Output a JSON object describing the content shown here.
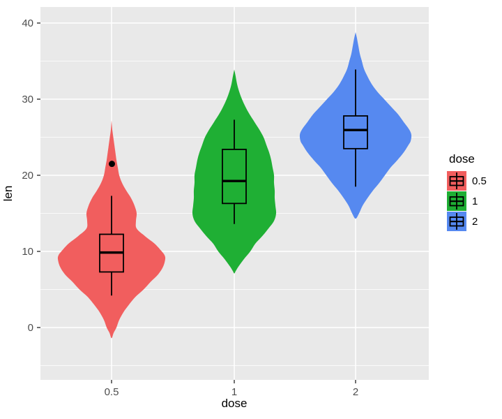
{
  "figure": {
    "background": "#FFFFFF",
    "panel_background": "#E9E9E9",
    "grid_color": "#FFFFFF"
  },
  "axes": {
    "x": {
      "title": "dose",
      "tick_labels": [
        "0.5",
        "1",
        "2"
      ]
    },
    "y": {
      "title": "len",
      "tick_labels": [
        "0",
        "10",
        "20",
        "30",
        "40"
      ],
      "tick_values": [
        0,
        10,
        20,
        30,
        40
      ],
      "minor_values": [
        -5,
        5,
        15,
        25,
        35
      ]
    }
  },
  "legend": {
    "title": "dose",
    "items": [
      {
        "label": "0.5",
        "color": "#F15E5E"
      },
      {
        "label": "1",
        "color": "#1FAF34"
      },
      {
        "label": "2",
        "color": "#5689F0"
      }
    ]
  },
  "chart_data": {
    "type": "violin",
    "title": "",
    "xlabel": "dose",
    "ylabel": "len",
    "categories": [
      "0.5",
      "1",
      "2"
    ],
    "ylim": [
      -7,
      42
    ],
    "grid": "on",
    "legend_position": "right",
    "series": [
      {
        "name": "0.5",
        "fill": "#F15E5E",
        "boxplot": {
          "whisker_low": 4.2,
          "q1": 7.3,
          "median": 9.85,
          "q3": 12.25,
          "whisker_high": 17.3,
          "outliers": [
            21.5
          ]
        },
        "violin": {
          "min": -1.4,
          "max": 27.2,
          "profile": [
            [
              27.2,
              0
            ],
            [
              26,
              1
            ],
            [
              25,
              2.5
            ],
            [
              24,
              4
            ],
            [
              23,
              5.5
            ],
            [
              22,
              7
            ],
            [
              21.5,
              8
            ],
            [
              21,
              9
            ],
            [
              20,
              11
            ],
            [
              19,
              15
            ],
            [
              18,
              21
            ],
            [
              17,
              28
            ],
            [
              16,
              33
            ],
            [
              15,
              36
            ],
            [
              14,
              35
            ],
            [
              13,
              36
            ],
            [
              12,
              48
            ],
            [
              11,
              62
            ],
            [
              10,
              72
            ],
            [
              9.5,
              76
            ],
            [
              9,
              77
            ],
            [
              8,
              74
            ],
            [
              7,
              67
            ],
            [
              6,
              56
            ],
            [
              5,
              46
            ],
            [
              4,
              34
            ],
            [
              3,
              25
            ],
            [
              2,
              17
            ],
            [
              1,
              11
            ],
            [
              0,
              7
            ],
            [
              -0.7,
              3
            ],
            [
              -1.4,
              0
            ]
          ]
        }
      },
      {
        "name": "1",
        "fill": "#1FAF34",
        "boxplot": {
          "whisker_low": 13.6,
          "q1": 16.3,
          "median": 19.25,
          "q3": 23.4,
          "whisker_high": 27.3,
          "outliers": []
        },
        "violin": {
          "min": 7.1,
          "max": 33.9,
          "profile": [
            [
              33.9,
              0
            ],
            [
              33,
              2
            ],
            [
              32,
              4
            ],
            [
              31,
              7
            ],
            [
              30,
              11
            ],
            [
              29,
              16
            ],
            [
              28,
              22
            ],
            [
              27,
              29
            ],
            [
              26,
              36
            ],
            [
              25,
              42
            ],
            [
              24,
              46
            ],
            [
              23,
              50
            ],
            [
              22,
              53
            ],
            [
              21,
              55
            ],
            [
              20,
              57
            ],
            [
              19,
              57
            ],
            [
              18,
              58
            ],
            [
              17,
              58
            ],
            [
              16,
              59
            ],
            [
              15,
              60
            ],
            [
              14,
              57
            ],
            [
              13,
              49
            ],
            [
              12,
              40
            ],
            [
              11,
              30
            ],
            [
              10,
              23
            ],
            [
              9,
              14
            ],
            [
              8,
              6
            ],
            [
              7.4,
              2
            ],
            [
              7.1,
              0
            ]
          ]
        }
      },
      {
        "name": "2",
        "fill": "#5689F0",
        "boxplot": {
          "whisker_low": 18.5,
          "q1": 23.5,
          "median": 25.95,
          "q3": 27.8,
          "whisker_high": 33.9,
          "outliers": []
        },
        "violin": {
          "min": 14.3,
          "max": 38.8,
          "profile": [
            [
              38.8,
              0
            ],
            [
              38,
              2
            ],
            [
              37,
              4
            ],
            [
              36,
              6
            ],
            [
              35,
              9
            ],
            [
              34,
              12
            ],
            [
              33,
              17
            ],
            [
              32,
              23
            ],
            [
              31,
              31
            ],
            [
              30,
              41
            ],
            [
              29,
              51
            ],
            [
              28,
              61
            ],
            [
              27,
              69
            ],
            [
              26,
              77
            ],
            [
              25.3,
              80
            ],
            [
              24.5,
              79
            ],
            [
              24,
              76
            ],
            [
              23,
              69
            ],
            [
              22,
              60
            ],
            [
              21,
              50
            ],
            [
              20,
              42
            ],
            [
              19,
              34
            ],
            [
              18,
              25
            ],
            [
              17,
              17
            ],
            [
              16,
              10
            ],
            [
              15,
              5
            ],
            [
              14.3,
              0
            ]
          ]
        }
      }
    ]
  }
}
